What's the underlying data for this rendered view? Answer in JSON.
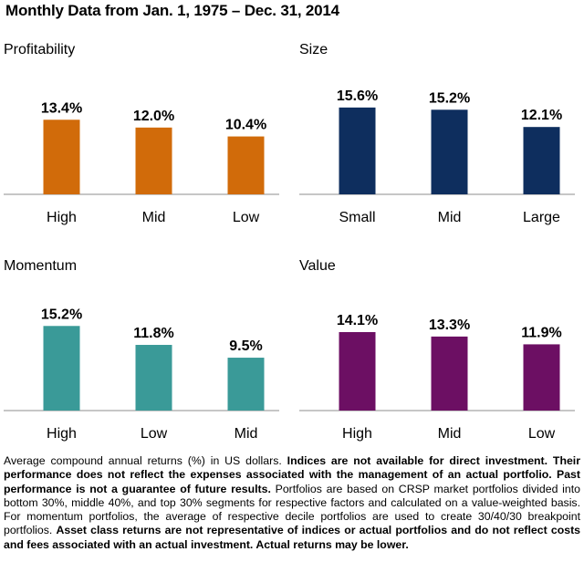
{
  "title": "Monthly Data from Jan. 1, 1975 – Dec. 31, 2014",
  "chart_data": [
    {
      "type": "bar",
      "title": "Profitability",
      "categories": [
        "High",
        "Mid",
        "Low"
      ],
      "values": [
        13.4,
        12.0,
        10.4
      ],
      "value_labels": [
        "13.4%",
        "12.0%",
        "10.4%"
      ],
      "color": "#d16b0a",
      "ylim": [
        0,
        17
      ],
      "xlabel": "",
      "ylabel": "",
      "grid": false,
      "legend": "none"
    },
    {
      "type": "bar",
      "title": "Size",
      "categories": [
        "Small",
        "Mid",
        "Large"
      ],
      "values": [
        15.6,
        15.2,
        12.1
      ],
      "value_labels": [
        "15.6%",
        "15.2%",
        "12.1%"
      ],
      "color": "#0e2e5e",
      "ylim": [
        0,
        17
      ],
      "xlabel": "",
      "ylabel": "",
      "grid": false,
      "legend": "none"
    },
    {
      "type": "bar",
      "title": "Momentum",
      "categories": [
        "High",
        "Low",
        "Mid"
      ],
      "values": [
        15.2,
        11.8,
        9.5
      ],
      "value_labels": [
        "15.2%",
        "11.8%",
        "9.5%"
      ],
      "color": "#3a9a98",
      "ylim": [
        0,
        17
      ],
      "xlabel": "",
      "ylabel": "",
      "grid": false,
      "legend": "none"
    },
    {
      "type": "bar",
      "title": "Value",
      "categories": [
        "High",
        "Mid",
        "Low"
      ],
      "values": [
        14.1,
        13.3,
        11.9
      ],
      "value_labels": [
        "14.1%",
        "13.3%",
        "11.9%"
      ],
      "color": "#6c0f63",
      "ylim": [
        0,
        17
      ],
      "xlabel": "",
      "ylabel": "",
      "grid": false,
      "legend": "none"
    }
  ],
  "footnote": {
    "p1": "Average compound annual returns (%) in US dollars. ",
    "b1": "Indices are not available for direct investment. Their performance does not reflect the expenses associated with the management of an actual portfolio. Past performance is not a guarantee of future results.",
    "p2": " Portfolios are based on CRSP market portfolios divided into bottom 30%, middle 40%, and top 30% segments for respective factors and calculated on a value-weighted basis. For momentum portfolios, the average of respective decile portfolios are used to create 30/40/30 breakpoint portfolios. ",
    "b2": "Asset class returns are not representative of indices or actual portfolios and do not reflect costs and fees associated with an actual investment. Actual returns may be lower."
  }
}
